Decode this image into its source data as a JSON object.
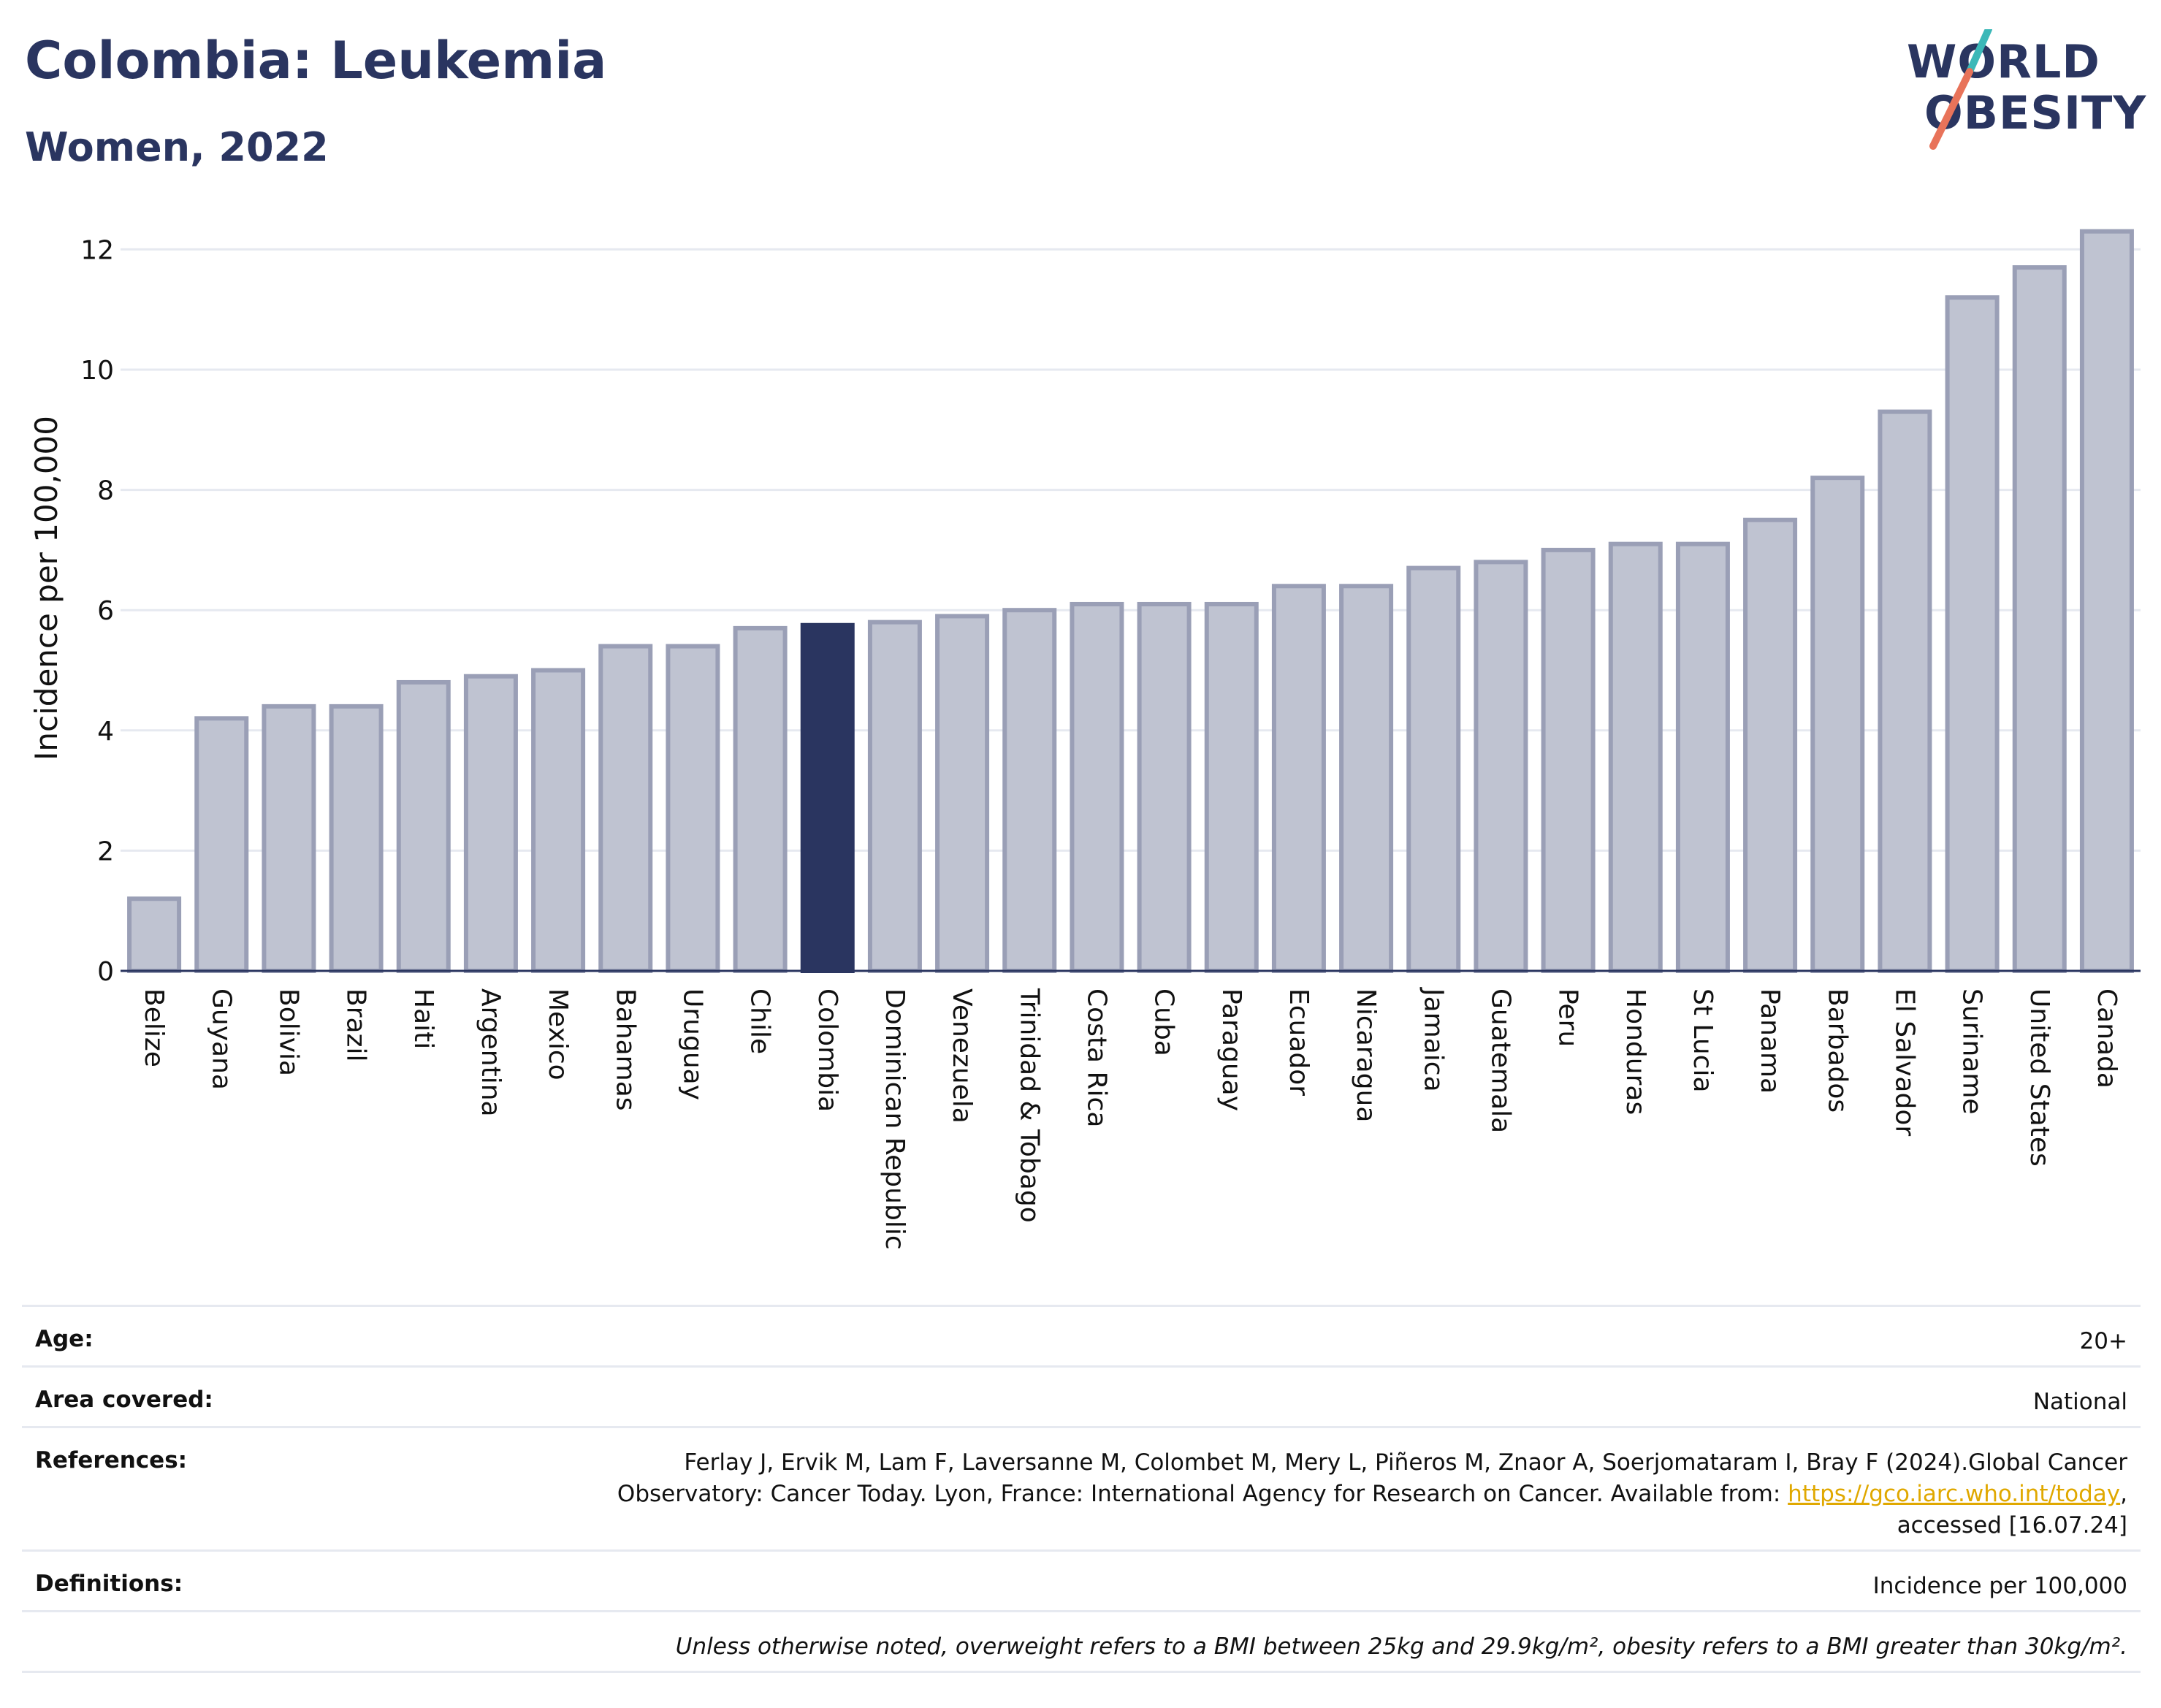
{
  "header": {
    "title": "Colombia: Leukemia",
    "subtitle": "Women, 2022"
  },
  "logo": {
    "line1": "WORLD",
    "line2": "OBESITY",
    "accent_colors": [
      "#3bb8b8",
      "#e8735a"
    ]
  },
  "colors": {
    "highlight": "#2a3560",
    "bar_fill": "#bfc3d1",
    "bar_stroke": "#9a9fb6",
    "grid": "#e6e9f0"
  },
  "chart_data": {
    "type": "bar",
    "title": "Colombia: Leukemia",
    "subtitle": "Women, 2022",
    "ylabel": "Incidence per 100,000",
    "xlabel": "",
    "ylim": [
      0,
      12.6
    ],
    "yticks": [
      0,
      2,
      4,
      6,
      8,
      10,
      12
    ],
    "grid": true,
    "highlight": "Colombia",
    "categories": [
      "Belize",
      "Guyana",
      "Bolivia",
      "Brazil",
      "Haiti",
      "Argentina",
      "Mexico",
      "Bahamas",
      "Uruguay",
      "Chile",
      "Colombia",
      "Dominican Republic",
      "Venezuela",
      "Trinidad & Tobago",
      "Costa Rica",
      "Cuba",
      "Paraguay",
      "Ecuador",
      "Nicaragua",
      "Jamaica",
      "Guatemala",
      "Peru",
      "Honduras",
      "St Lucia",
      "Panama",
      "Barbados",
      "El Salvador",
      "Suriname",
      "United States",
      "Canada"
    ],
    "values": [
      1.2,
      4.2,
      4.4,
      4.4,
      4.8,
      4.9,
      5.0,
      5.4,
      5.4,
      5.7,
      5.75,
      5.8,
      5.9,
      6.0,
      6.1,
      6.1,
      6.1,
      6.4,
      6.4,
      6.7,
      6.8,
      7.0,
      7.1,
      7.1,
      7.5,
      8.2,
      9.3,
      11.2,
      11.7,
      12.3
    ]
  },
  "info": {
    "age_label": "Age:",
    "age_value": "20+",
    "area_label": "Area covered:",
    "area_value": "National",
    "references_label": "References:",
    "references_line1": "Ferlay J, Ervik M, Lam F, Laversanne M, Colombet M, Mery L, Piñeros M, Znaor A, Soerjomataram I, Bray F (2024).Global Cancer",
    "references_line2_pre": "Observatory: Cancer Today. Lyon, France: International Agency for Research on Cancer. Available from: ",
    "references_link": "https://gco.iarc.who.int/today",
    "references_line2_post": ",",
    "references_line3": "accessed [16.07.24]",
    "definitions_label": "Definitions:",
    "definitions_value": "Incidence per 100,000",
    "note": "Unless otherwise noted, overweight refers to a BMI between 25kg and 29.9kg/m², obesity refers to a BMI greater than 30kg/m²."
  }
}
